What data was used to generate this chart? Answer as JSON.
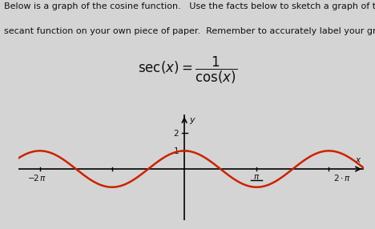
{
  "title_line1": "Below is a graph of the cosine function.   Use the facts below to sketch a graph of the",
  "title_line2": "secant function on your own piece of paper.  Remember to accurately label your grap",
  "curve_color": "#cc2200",
  "background_color": "#d4d4d4",
  "axis_color": "#000000",
  "text_color": "#111111",
  "font_size_title": 8.0,
  "font_size_formula": 12,
  "pi": 3.14159265358979,
  "x_min": -7.2,
  "x_max": 7.8,
  "y_min": -2.8,
  "y_max": 3.0
}
